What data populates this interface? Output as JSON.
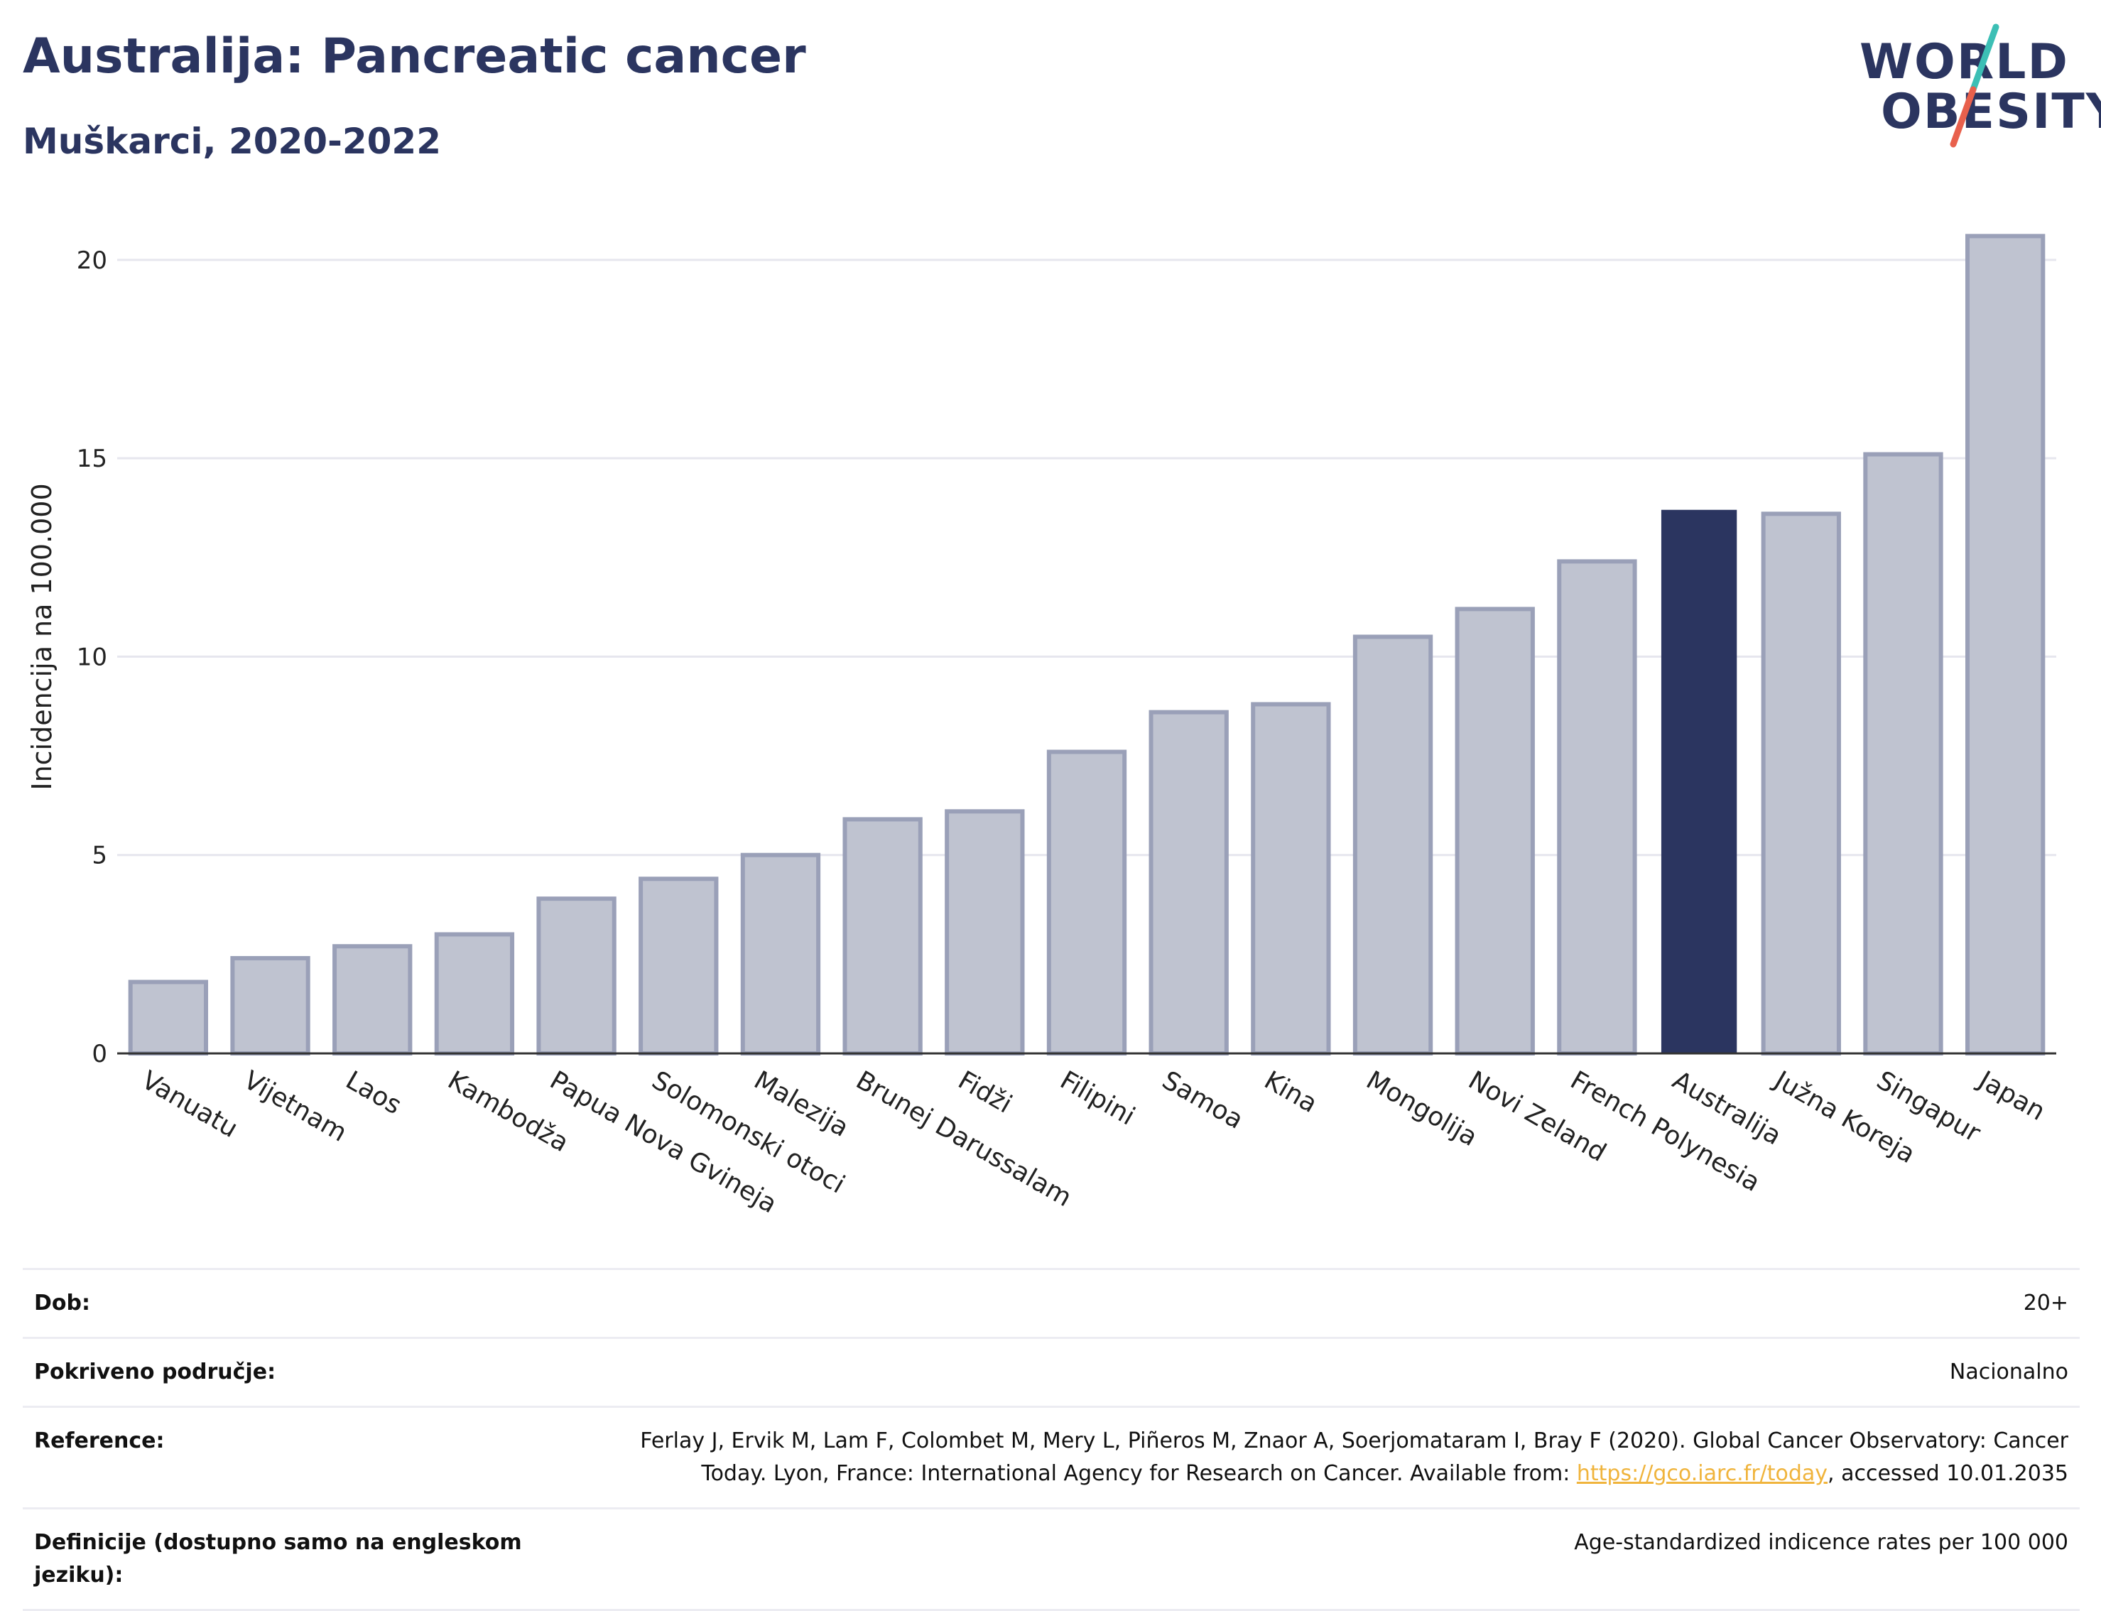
{
  "header": {
    "title": "Australija: Pancreatic cancer",
    "subtitle": "Muškarci, 2020-2022"
  },
  "logo": {
    "line1": "WORLD",
    "line2": "OBESITY",
    "slash_colors": [
      "#3cbfb5",
      "#e8604c"
    ]
  },
  "colors": {
    "bar_default": "#bfc3d0",
    "bar_default_border": "#9aa0b8",
    "bar_highlight": "#2b3560",
    "gridline": "#e6e6ee",
    "axis": "#333333",
    "text": "#2b3560",
    "link": "#f0b43c"
  },
  "chart_data": {
    "type": "bar",
    "title": "Australija: Pancreatic cancer",
    "subtitle": "Muškarci, 2020-2022",
    "ylabel": "Incidencija na 100.000",
    "xlabel": "",
    "ylim": [
      0,
      21
    ],
    "yticks": [
      0,
      5,
      10,
      15,
      20
    ],
    "grid": true,
    "highlight": "Australija",
    "categories": [
      "Vanuatu",
      "Vijetnam",
      "Laos",
      "Kambodža",
      "Papua Nova Gvineja",
      "Solomonski otoci",
      "Malezija",
      "Brunej Darussalam",
      "Fidži",
      "Filipini",
      "Samoa",
      "Kina",
      "Mongolija",
      "Novi Zeland",
      "French Polynesia",
      "Australija",
      "Južna Koreja",
      "Singapur",
      "Japan"
    ],
    "values": [
      1.8,
      2.4,
      2.7,
      3.0,
      3.9,
      4.4,
      5.0,
      5.9,
      6.1,
      7.6,
      8.6,
      8.8,
      10.5,
      11.2,
      12.4,
      13.7,
      13.6,
      15.1,
      20.6
    ]
  },
  "info": [
    {
      "label": "Dob:",
      "value": "20+"
    },
    {
      "label": "Pokriveno područje:",
      "value": "Nacionalno"
    },
    {
      "label": "Reference:",
      "value_before": "Ferlay J, Ervik M, Lam F, Colombet M, Mery L, Piñeros M, Znaor A, Soerjomataram I, Bray F (2020). Global Cancer Observatory: Cancer Today. Lyon, France: International Agency for Research on Cancer. Available from: ",
      "link": "https://gco.iarc.fr/today",
      "value_after": ", accessed 10.01.2035"
    },
    {
      "label": "Definicije (dostupno samo na engleskom jeziku):",
      "value": "Age-standardized indicence rates per 100 000"
    }
  ]
}
